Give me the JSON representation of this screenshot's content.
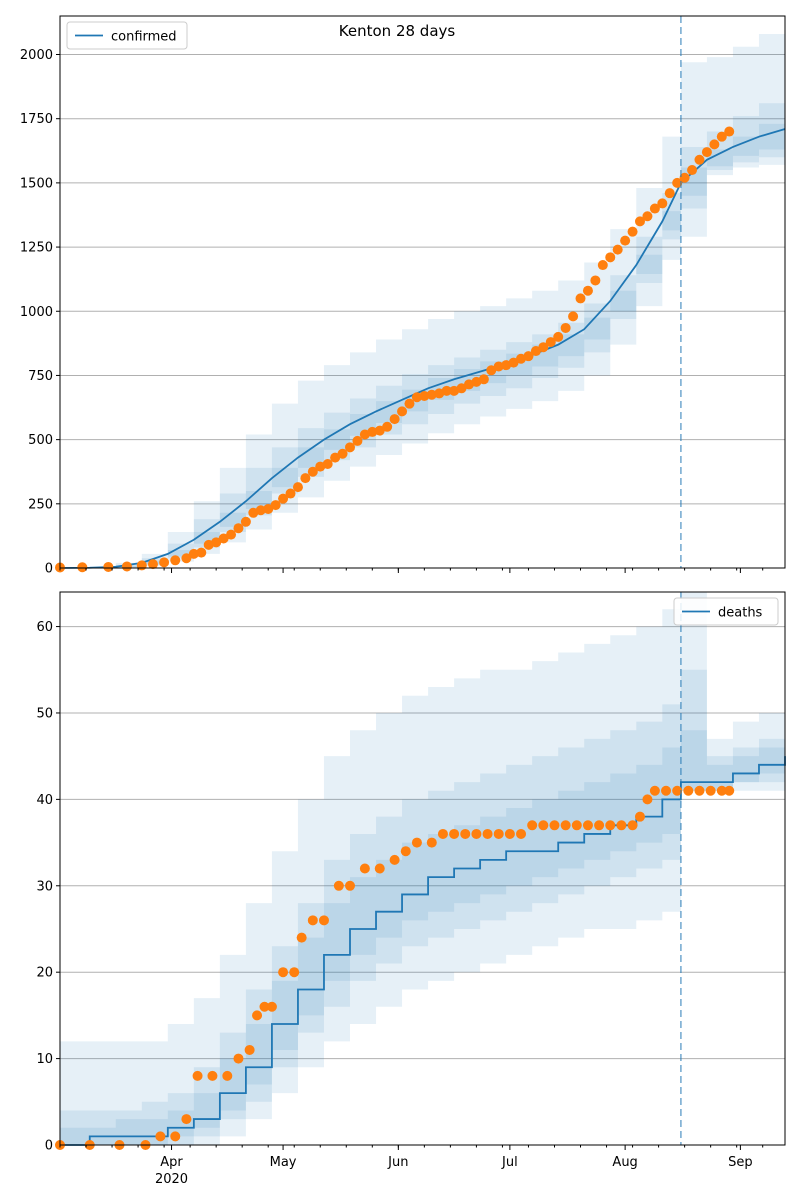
{
  "figure_title": "Kenton 28 days",
  "colors": {
    "model": "#1f77b4",
    "observed": "#ff7f0e",
    "band": "#1f77b4",
    "grid": "#b0b0b0",
    "vline": "#1f77b4"
  },
  "chart_data": [
    {
      "type": "line",
      "panel": "confirmed",
      "title": "Kenton 28 days",
      "xlabel": "",
      "ylabel": "",
      "xlim": [
        "2020-03-02",
        "2020-09-13"
      ],
      "ylim": [
        0,
        2150
      ],
      "yticks": [
        0,
        250,
        500,
        750,
        1000,
        1250,
        1500,
        1750,
        2000
      ],
      "grid": "horizontal",
      "legend": {
        "position": "upper-left",
        "entries": [
          "confirmed"
        ]
      },
      "forecast_start": "2020-08-16",
      "model_curve": {
        "name": "confirmed",
        "x": [
          "2020-03-02",
          "2020-03-10",
          "2020-03-17",
          "2020-03-24",
          "2020-03-31",
          "2020-04-07",
          "2020-04-14",
          "2020-04-21",
          "2020-04-28",
          "2020-05-05",
          "2020-05-12",
          "2020-05-19",
          "2020-05-26",
          "2020-06-02",
          "2020-06-09",
          "2020-06-16",
          "2020-06-23",
          "2020-06-30",
          "2020-07-07",
          "2020-07-14",
          "2020-07-21",
          "2020-07-28",
          "2020-08-04",
          "2020-08-11",
          "2020-08-16",
          "2020-08-23",
          "2020-08-30",
          "2020-09-06",
          "2020-09-13"
        ],
        "y": [
          0,
          1,
          5,
          20,
          55,
          110,
          180,
          260,
          350,
          430,
          500,
          560,
          610,
          655,
          700,
          735,
          765,
          795,
          830,
          870,
          930,
          1040,
          1180,
          1350,
          1500,
          1590,
          1640,
          1680,
          1710
        ]
      },
      "bands": [
        {
          "label": "outer",
          "lower": [
            0,
            0,
            1,
            8,
            25,
            55,
            100,
            150,
            215,
            275,
            340,
            395,
            440,
            485,
            525,
            560,
            590,
            620,
            650,
            690,
            750,
            870,
            1020,
            1200,
            1290,
            1530,
            1560,
            1570,
            1580
          ],
          "upper": [
            2,
            5,
            20,
            55,
            140,
            260,
            390,
            520,
            640,
            730,
            790,
            840,
            890,
            930,
            970,
            1000,
            1020,
            1050,
            1080,
            1120,
            1190,
            1320,
            1480,
            1680,
            1970,
            1990,
            2030,
            2080,
            2140
          ]
        },
        {
          "label": "middle",
          "lower": [
            0,
            0,
            2,
            12,
            38,
            80,
            140,
            205,
            290,
            355,
            420,
            470,
            520,
            560,
            600,
            640,
            670,
            700,
            740,
            780,
            840,
            970,
            1110,
            1280,
            1400,
            1550,
            1580,
            1600,
            1610
          ],
          "upper": [
            1,
            3,
            12,
            38,
            95,
            190,
            290,
            390,
            470,
            545,
            605,
            660,
            710,
            755,
            790,
            820,
            850,
            880,
            910,
            955,
            1030,
            1140,
            1290,
            1460,
            1640,
            1700,
            1760,
            1810,
            1850
          ]
        },
        {
          "label": "inner",
          "lower": [
            0,
            0,
            3,
            15,
            45,
            95,
            160,
            230,
            315,
            390,
            460,
            515,
            565,
            610,
            655,
            690,
            720,
            750,
            785,
            825,
            890,
            1000,
            1145,
            1315,
            1450,
            1565,
            1605,
            1630,
            1650
          ],
          "upper": [
            1,
            2,
            8,
            28,
            70,
            140,
            215,
            300,
            390,
            470,
            540,
            600,
            650,
            695,
            740,
            775,
            805,
            835,
            870,
            910,
            975,
            1080,
            1220,
            1390,
            1560,
            1630,
            1680,
            1730,
            1770
          ]
        }
      ],
      "observed": {
        "name": "observed",
        "x": [
          "2020-03-02",
          "2020-03-08",
          "2020-03-15",
          "2020-03-20",
          "2020-03-24",
          "2020-03-27",
          "2020-03-30",
          "2020-04-02",
          "2020-04-05",
          "2020-04-07",
          "2020-04-09",
          "2020-04-11",
          "2020-04-13",
          "2020-04-15",
          "2020-04-17",
          "2020-04-19",
          "2020-04-21",
          "2020-04-23",
          "2020-04-25",
          "2020-04-27",
          "2020-04-29",
          "2020-05-01",
          "2020-05-03",
          "2020-05-05",
          "2020-05-07",
          "2020-05-09",
          "2020-05-11",
          "2020-05-13",
          "2020-05-15",
          "2020-05-17",
          "2020-05-19",
          "2020-05-21",
          "2020-05-23",
          "2020-05-25",
          "2020-05-27",
          "2020-05-29",
          "2020-05-31",
          "2020-06-02",
          "2020-06-04",
          "2020-06-06",
          "2020-06-08",
          "2020-06-10",
          "2020-06-12",
          "2020-06-14",
          "2020-06-16",
          "2020-06-18",
          "2020-06-20",
          "2020-06-22",
          "2020-06-24",
          "2020-06-26",
          "2020-06-28",
          "2020-06-30",
          "2020-07-02",
          "2020-07-04",
          "2020-07-06",
          "2020-07-08",
          "2020-07-10",
          "2020-07-12",
          "2020-07-14",
          "2020-07-16",
          "2020-07-18",
          "2020-07-20",
          "2020-07-22",
          "2020-07-24",
          "2020-07-26",
          "2020-07-28",
          "2020-07-30",
          "2020-08-01",
          "2020-08-03",
          "2020-08-05",
          "2020-08-07",
          "2020-08-09",
          "2020-08-11",
          "2020-08-13",
          "2020-08-15",
          "2020-08-17",
          "2020-08-19",
          "2020-08-21",
          "2020-08-23",
          "2020-08-25",
          "2020-08-27",
          "2020-08-29"
        ],
        "y": [
          2,
          3,
          4,
          6,
          10,
          15,
          22,
          30,
          38,
          55,
          60,
          90,
          100,
          115,
          130,
          155,
          180,
          215,
          225,
          230,
          245,
          270,
          290,
          315,
          350,
          375,
          395,
          405,
          430,
          445,
          470,
          495,
          520,
          530,
          535,
          550,
          580,
          610,
          640,
          665,
          670,
          675,
          680,
          690,
          690,
          700,
          715,
          725,
          735,
          770,
          785,
          790,
          800,
          815,
          825,
          845,
          860,
          880,
          900,
          935,
          980,
          1050,
          1080,
          1120,
          1180,
          1210,
          1240,
          1275,
          1310,
          1350,
          1370,
          1400,
          1420,
          1460,
          1500,
          1520,
          1550,
          1590,
          1620,
          1650,
          1680,
          1700
        ]
      }
    },
    {
      "type": "line",
      "panel": "deaths",
      "xlabel": "",
      "ylabel": "",
      "xlim": [
        "2020-03-02",
        "2020-09-13"
      ],
      "ylim": [
        0,
        64
      ],
      "yticks": [
        0,
        10,
        20,
        30,
        40,
        50,
        60
      ],
      "xticks": [
        "Apr",
        "May",
        "Jun",
        "Jul",
        "Aug",
        "Sep"
      ],
      "xtick_dates": [
        "2020-04-01",
        "2020-05-01",
        "2020-06-01",
        "2020-07-01",
        "2020-08-01",
        "2020-09-01"
      ],
      "year_label": "2020",
      "grid": "horizontal",
      "legend": {
        "position": "upper-right",
        "entries": [
          "deaths"
        ]
      },
      "forecast_start": "2020-08-16",
      "model_curve": {
        "name": "deaths",
        "x": [
          "2020-03-02",
          "2020-03-10",
          "2020-03-17",
          "2020-03-24",
          "2020-03-31",
          "2020-04-07",
          "2020-04-14",
          "2020-04-21",
          "2020-04-28",
          "2020-05-05",
          "2020-05-12",
          "2020-05-19",
          "2020-05-26",
          "2020-06-02",
          "2020-06-09",
          "2020-06-16",
          "2020-06-23",
          "2020-06-30",
          "2020-07-07",
          "2020-07-14",
          "2020-07-21",
          "2020-07-28",
          "2020-08-04",
          "2020-08-11",
          "2020-08-16",
          "2020-08-23",
          "2020-08-30",
          "2020-09-06",
          "2020-09-13"
        ],
        "y": [
          0,
          1,
          1,
          1,
          2,
          3,
          6,
          9,
          14,
          18,
          22,
          25,
          27,
          29,
          31,
          32,
          33,
          34,
          34,
          35,
          36,
          37,
          38,
          40,
          42,
          42,
          43,
          44,
          45
        ]
      },
      "bands": [
        {
          "label": "outer",
          "lower": [
            0,
            0,
            0,
            0,
            0,
            0,
            1,
            3,
            6,
            9,
            12,
            14,
            16,
            18,
            19,
            20,
            21,
            22,
            23,
            24,
            25,
            25,
            26,
            27,
            41,
            41,
            41,
            41,
            41
          ],
          "upper": [
            12,
            12,
            12,
            12,
            14,
            17,
            22,
            28,
            34,
            40,
            45,
            48,
            50,
            52,
            53,
            54,
            55,
            55,
            56,
            57,
            58,
            59,
            60,
            62,
            64,
            47,
            49,
            50,
            51
          ]
        },
        {
          "label": "middle",
          "lower": [
            0,
            0,
            0,
            0,
            0,
            1,
            3,
            5,
            9,
            13,
            16,
            19,
            21,
            23,
            24,
            25,
            26,
            27,
            28,
            29,
            30,
            31,
            32,
            33,
            41,
            41,
            42,
            42,
            42
          ],
          "upper": [
            4,
            4,
            4,
            5,
            6,
            9,
            13,
            18,
            23,
            28,
            33,
            36,
            38,
            40,
            41,
            42,
            43,
            44,
            45,
            46,
            47,
            48,
            49,
            51,
            55,
            45,
            46,
            47,
            48
          ]
        },
        {
          "label": "inner",
          "lower": [
            0,
            0,
            0,
            0,
            1,
            2,
            4,
            7,
            11,
            15,
            19,
            22,
            24,
            26,
            27,
            28,
            29,
            30,
            31,
            32,
            33,
            34,
            35,
            36,
            41,
            41,
            42,
            43,
            43
          ],
          "upper": [
            2,
            2,
            3,
            3,
            4,
            6,
            10,
            14,
            19,
            24,
            28,
            31,
            33,
            35,
            36,
            37,
            38,
            39,
            40,
            41,
            42,
            43,
            44,
            46,
            48,
            44,
            45,
            46,
            46
          ]
        }
      ],
      "observed": {
        "name": "observed",
        "x": [
          "2020-03-02",
          "2020-03-10",
          "2020-03-18",
          "2020-03-25",
          "2020-03-29",
          "2020-04-02",
          "2020-04-05",
          "2020-04-08",
          "2020-04-12",
          "2020-04-16",
          "2020-04-19",
          "2020-04-22",
          "2020-04-24",
          "2020-04-26",
          "2020-04-28",
          "2020-05-01",
          "2020-05-04",
          "2020-05-06",
          "2020-05-09",
          "2020-05-12",
          "2020-05-16",
          "2020-05-19",
          "2020-05-23",
          "2020-05-27",
          "2020-05-31",
          "2020-06-03",
          "2020-06-06",
          "2020-06-10",
          "2020-06-13",
          "2020-06-16",
          "2020-06-19",
          "2020-06-22",
          "2020-06-25",
          "2020-06-28",
          "2020-07-01",
          "2020-07-04",
          "2020-07-07",
          "2020-07-10",
          "2020-07-13",
          "2020-07-16",
          "2020-07-19",
          "2020-07-22",
          "2020-07-25",
          "2020-07-28",
          "2020-07-31",
          "2020-08-03",
          "2020-08-05",
          "2020-08-07",
          "2020-08-09",
          "2020-08-12",
          "2020-08-15",
          "2020-08-18",
          "2020-08-21",
          "2020-08-24",
          "2020-08-27",
          "2020-08-29"
        ],
        "y": [
          0,
          0,
          0,
          0,
          1,
          1,
          3,
          8,
          8,
          8,
          10,
          11,
          15,
          16,
          16,
          20,
          20,
          24,
          26,
          26,
          30,
          30,
          32,
          32,
          33,
          34,
          35,
          35,
          36,
          36,
          36,
          36,
          36,
          36,
          36,
          36,
          37,
          37,
          37,
          37,
          37,
          37,
          37,
          37,
          37,
          37,
          38,
          40,
          41,
          41,
          41,
          41,
          41,
          41,
          41,
          41
        ]
      }
    }
  ]
}
